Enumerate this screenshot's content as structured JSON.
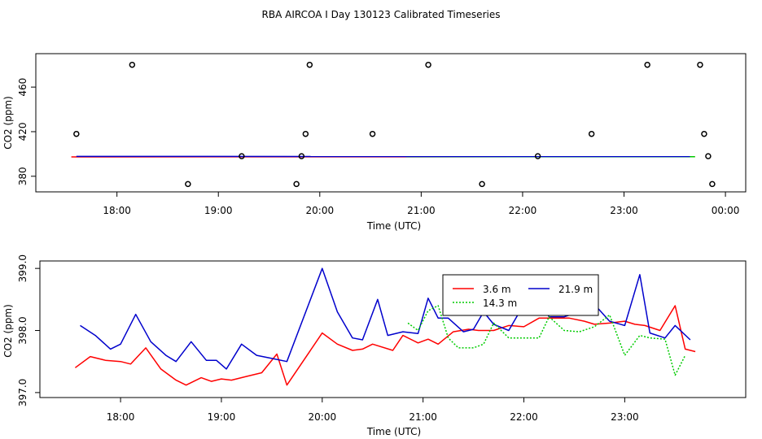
{
  "figure": {
    "title": "RBA AIRCOA I  Day 130123  Calibrated Timeseries"
  },
  "chart_data": [
    {
      "type": "scatter",
      "xlabel": "Time (UTC)",
      "ylabel": "CO2 (ppm)",
      "xlim": [
        17.2,
        24.2
      ],
      "ylim": [
        366,
        490
      ],
      "x_ticks": [
        {
          "value": 18,
          "label": "18:00"
        },
        {
          "value": 19,
          "label": "19:00"
        },
        {
          "value": 20,
          "label": "20:00"
        },
        {
          "value": 21,
          "label": "21:00"
        },
        {
          "value": 22,
          "label": "22:00"
        },
        {
          "value": 23,
          "label": "23:00"
        },
        {
          "value": 24,
          "label": "00:00"
        }
      ],
      "y_ticks": [
        {
          "value": 380,
          "label": "380"
        },
        {
          "value": 420,
          "label": "420"
        },
        {
          "value": 460,
          "label": "460"
        }
      ],
      "calibration_points": [
        {
          "x": 17.6,
          "y": 418
        },
        {
          "x": 18.15,
          "y": 480
        },
        {
          "x": 18.7,
          "y": 373
        },
        {
          "x": 19.23,
          "y": 398
        },
        {
          "x": 19.77,
          "y": 373
        },
        {
          "x": 19.82,
          "y": 398
        },
        {
          "x": 19.86,
          "y": 418
        },
        {
          "x": 19.9,
          "y": 480
        },
        {
          "x": 20.52,
          "y": 418
        },
        {
          "x": 21.07,
          "y": 480
        },
        {
          "x": 21.6,
          "y": 373
        },
        {
          "x": 22.15,
          "y": 398
        },
        {
          "x": 22.68,
          "y": 418
        },
        {
          "x": 23.23,
          "y": 480
        },
        {
          "x": 23.75,
          "y": 480
        },
        {
          "x": 23.79,
          "y": 418
        },
        {
          "x": 23.83,
          "y": 398
        },
        {
          "x": 23.87,
          "y": 373
        }
      ],
      "series": [
        {
          "color": "#ff0000",
          "x": [
            17.55,
            23.7
          ],
          "y": [
            397.4,
            397.6
          ]
        },
        {
          "color": "#00cc00",
          "x": [
            20.85,
            23.7
          ],
          "y": [
            397.6,
            397.6
          ]
        },
        {
          "color": "#0000cc",
          "x": [
            17.6,
            23.65
          ],
          "y": [
            397.8,
            397.7
          ]
        }
      ],
      "grid": false
    },
    {
      "type": "line",
      "xlabel": "Time (UTC)",
      "ylabel": "CO2 (ppm)",
      "xlim": [
        17.2,
        24.2
      ],
      "ylim": [
        396.92,
        399.12
      ],
      "x_ticks": [
        {
          "value": 18,
          "label": "18:00"
        },
        {
          "value": 19,
          "label": "19:00"
        },
        {
          "value": 20,
          "label": "20:00"
        },
        {
          "value": 21,
          "label": "21:00"
        },
        {
          "value": 22,
          "label": "22:00"
        },
        {
          "value": 23,
          "label": "23:00"
        }
      ],
      "y_ticks": [
        {
          "value": 397.0,
          "label": "397.0"
        },
        {
          "value": 398.0,
          "label": "398.0"
        },
        {
          "value": 399.0,
          "label": "399.0"
        }
      ],
      "legend_position": "top-center",
      "series": [
        {
          "name": "3.6 m",
          "color": "#ff0000",
          "dash": "solid",
          "x": [
            17.55,
            17.7,
            17.85,
            18.0,
            18.1,
            18.25,
            18.4,
            18.55,
            18.65,
            18.8,
            18.9,
            19.0,
            19.1,
            19.25,
            19.4,
            19.55,
            19.65,
            20.0,
            20.15,
            20.3,
            20.4,
            20.5,
            20.7,
            20.8,
            20.95,
            21.05,
            21.15,
            21.3,
            21.45,
            21.55,
            21.7,
            21.85,
            22.0,
            22.15,
            22.3,
            22.45,
            22.6,
            22.7,
            22.85,
            23.0,
            23.1,
            23.2,
            23.35,
            23.5,
            23.6,
            23.7
          ],
          "y": [
            397.4,
            397.58,
            397.52,
            397.5,
            397.46,
            397.72,
            397.38,
            397.2,
            397.12,
            397.24,
            397.18,
            397.22,
            397.2,
            397.26,
            397.32,
            397.62,
            397.12,
            397.96,
            397.78,
            397.68,
            397.7,
            397.78,
            397.68,
            397.92,
            397.8,
            397.86,
            397.78,
            397.98,
            398.02,
            398.0,
            398.0,
            398.08,
            398.06,
            398.2,
            398.2,
            398.2,
            398.15,
            398.1,
            398.12,
            398.15,
            398.1,
            398.08,
            398.0,
            398.4,
            397.7,
            397.66
          ]
        },
        {
          "name": "21.9 m",
          "color": "#0000cc",
          "dash": "solid",
          "x": [
            17.6,
            17.75,
            17.9,
            18.0,
            18.15,
            18.3,
            18.45,
            18.55,
            18.7,
            18.85,
            18.95,
            19.05,
            19.2,
            19.35,
            19.5,
            19.65,
            20.0,
            20.15,
            20.3,
            20.4,
            20.55,
            20.65,
            20.8,
            20.95,
            21.05,
            21.15,
            21.25,
            21.4,
            21.5,
            21.6,
            21.7,
            21.85,
            22.0,
            22.15,
            22.25,
            22.4,
            22.55,
            22.7,
            22.85,
            23.0,
            23.15,
            23.25,
            23.4,
            23.5,
            23.65
          ],
          "y": [
            398.08,
            397.92,
            397.7,
            397.78,
            398.26,
            397.82,
            397.6,
            397.5,
            397.82,
            397.52,
            397.52,
            397.38,
            397.78,
            397.6,
            397.55,
            397.5,
            399.0,
            398.3,
            397.88,
            397.85,
            398.5,
            397.92,
            397.98,
            397.95,
            398.52,
            398.2,
            398.2,
            397.98,
            398.02,
            398.3,
            398.1,
            398.0,
            398.42,
            398.48,
            398.22,
            398.22,
            398.3,
            398.42,
            398.15,
            398.08,
            398.9,
            397.96,
            397.88,
            398.08,
            397.85
          ]
        },
        {
          "name": "14.3 m",
          "color": "#00cc00",
          "dash": "dotted",
          "x": [
            20.85,
            20.95,
            21.05,
            21.15,
            21.25,
            21.35,
            21.5,
            21.6,
            21.7,
            21.85,
            22.0,
            22.15,
            22.25,
            22.4,
            22.55,
            22.7,
            22.85,
            23.0,
            23.15,
            23.25,
            23.4,
            23.5,
            23.6
          ],
          "y": [
            398.12,
            398.0,
            398.32,
            398.4,
            397.88,
            397.72,
            397.72,
            397.78,
            398.12,
            397.88,
            397.88,
            397.88,
            398.22,
            398.0,
            397.98,
            398.06,
            398.25,
            397.6,
            397.92,
            397.88,
            397.86,
            397.28,
            397.6
          ]
        }
      ],
      "grid": false
    }
  ]
}
